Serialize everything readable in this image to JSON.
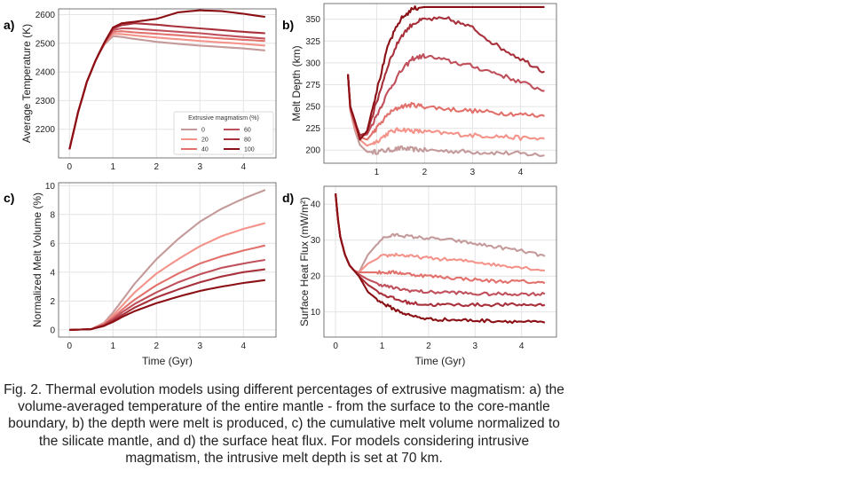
{
  "caption": "Fig. 2. Thermal evolution models using different percentages of extrusive magmatism: a) the volume-averaged temperature of the entire mantle - from the surface to the core-mantle boundary, b) the depth were melt is produced, c) the cumulative melt volume normalized to the silicate mantle, and d) the surface heat flux. For models considering intrusive magmatism, the intrusive melt depth is set at 70 km.",
  "colors": [
    "#c49a9a",
    "#f4938a",
    "#e2716c",
    "#c0505c",
    "#a8303a",
    "#8b1015"
  ],
  "chart_data": [
    {
      "id": "a",
      "panel_label": "a)",
      "type": "line",
      "xlabel": "",
      "ylabel": "Average Temperature (K)",
      "xlim": [
        -0.25,
        4.75
      ],
      "ylim": [
        2100,
        2620
      ],
      "xticks": [
        0,
        1,
        2,
        3,
        4
      ],
      "yticks": [
        2200,
        2300,
        2400,
        2500,
        2600
      ],
      "grid": true,
      "legend": {
        "title": "Extrusive magmatism (%)",
        "position": "lower-right",
        "entries": [
          "0",
          "20",
          "40",
          "60",
          "80",
          "100"
        ]
      },
      "x": [
        0,
        0.2,
        0.4,
        0.6,
        0.8,
        1.0,
        1.2,
        1.5,
        2.0,
        2.5,
        3.0,
        3.5,
        4.0,
        4.5
      ],
      "series": [
        {
          "name": "0",
          "values": [
            2130,
            2260,
            2365,
            2440,
            2495,
            2525,
            2522,
            2515,
            2505,
            2498,
            2492,
            2487,
            2482,
            2475
          ]
        },
        {
          "name": "20",
          "values": [
            2130,
            2260,
            2365,
            2440,
            2497,
            2533,
            2532,
            2527,
            2520,
            2514,
            2508,
            2503,
            2498,
            2492
          ]
        },
        {
          "name": "40",
          "values": [
            2130,
            2260,
            2365,
            2440,
            2498,
            2540,
            2542,
            2538,
            2533,
            2528,
            2522,
            2517,
            2512,
            2508
          ]
        },
        {
          "name": "60",
          "values": [
            2130,
            2260,
            2365,
            2440,
            2499,
            2546,
            2552,
            2551,
            2545,
            2540,
            2535,
            2528,
            2522,
            2516
          ]
        },
        {
          "name": "80",
          "values": [
            2130,
            2260,
            2365,
            2440,
            2500,
            2552,
            2563,
            2570,
            2565,
            2558,
            2552,
            2546,
            2540,
            2535
          ]
        },
        {
          "name": "100",
          "values": [
            2130,
            2260,
            2365,
            2440,
            2502,
            2555,
            2570,
            2575,
            2585,
            2608,
            2615,
            2612,
            2603,
            2592
          ]
        }
      ]
    },
    {
      "id": "b",
      "panel_label": "b)",
      "type": "line",
      "xlabel": "",
      "ylabel": "Melt Depth (km)",
      "xlim": [
        -0.1,
        4.75
      ],
      "ylim": [
        185,
        368
      ],
      "xticks": [
        1,
        2,
        3,
        4
      ],
      "yticks": [
        200,
        225,
        250,
        275,
        300,
        325,
        350
      ],
      "grid": true,
      "x": [
        0.4,
        0.45,
        0.55,
        0.65,
        0.8,
        1.0,
        1.25,
        1.5,
        1.75,
        2.0,
        2.5,
        3.0,
        3.5,
        4.0,
        4.5
      ],
      "series": [
        {
          "name": "0",
          "values": [
            287,
            245,
            222,
            206,
            198,
            198,
            200,
            202,
            201,
            200,
            199,
            198,
            197,
            196,
            194
          ]
        },
        {
          "name": "20",
          "values": [
            287,
            246,
            225,
            212,
            205,
            210,
            220,
            224,
            222,
            221,
            219,
            217,
            216,
            214,
            213
          ]
        },
        {
          "name": "40",
          "values": [
            287,
            247,
            228,
            215,
            212,
            225,
            242,
            250,
            252,
            250,
            247,
            245,
            243,
            241,
            239
          ]
        },
        {
          "name": "60",
          "values": [
            287,
            248,
            230,
            216,
            218,
            240,
            268,
            290,
            305,
            308,
            302,
            296,
            288,
            278,
            268
          ]
        },
        {
          "name": "80",
          "values": [
            287,
            249,
            232,
            217,
            220,
            255,
            300,
            330,
            345,
            350,
            350,
            340,
            320,
            305,
            290
          ]
        },
        {
          "name": "100",
          "values": [
            287,
            250,
            233,
            212,
            222,
            268,
            322,
            350,
            362,
            364,
            364,
            364,
            364,
            364,
            364
          ]
        }
      ]
    },
    {
      "id": "c",
      "panel_label": "c)",
      "type": "line",
      "xlabel": "Time (Gyr)",
      "ylabel": "Normalized Melt Volume (%)",
      "xlim": [
        -0.25,
        4.75
      ],
      "ylim": [
        -0.5,
        10.2
      ],
      "xticks": [
        0,
        1,
        2,
        3,
        4
      ],
      "yticks": [
        0,
        2,
        4,
        6,
        8,
        10
      ],
      "grid": true,
      "x": [
        0,
        0.5,
        0.8,
        1.0,
        1.25,
        1.5,
        2.0,
        2.5,
        3.0,
        3.5,
        4.0,
        4.5
      ],
      "series": [
        {
          "name": "0",
          "values": [
            0,
            0.05,
            0.5,
            1.2,
            2.2,
            3.2,
            4.9,
            6.3,
            7.5,
            8.4,
            9.1,
            9.7
          ]
        },
        {
          "name": "20",
          "values": [
            0,
            0.05,
            0.45,
            1.0,
            1.8,
            2.6,
            3.9,
            4.9,
            5.8,
            6.5,
            7.0,
            7.4
          ]
        },
        {
          "name": "40",
          "values": [
            0,
            0.05,
            0.4,
            0.85,
            1.5,
            2.1,
            3.1,
            3.9,
            4.6,
            5.1,
            5.5,
            5.85
          ]
        },
        {
          "name": "60",
          "values": [
            0,
            0.05,
            0.35,
            0.75,
            1.3,
            1.8,
            2.6,
            3.3,
            3.85,
            4.3,
            4.6,
            4.85
          ]
        },
        {
          "name": "80",
          "values": [
            0,
            0.05,
            0.3,
            0.65,
            1.1,
            1.55,
            2.25,
            2.8,
            3.3,
            3.7,
            4.0,
            4.2
          ]
        },
        {
          "name": "100",
          "values": [
            0,
            0.05,
            0.28,
            0.55,
            0.95,
            1.3,
            1.85,
            2.3,
            2.7,
            3.0,
            3.25,
            3.45
          ]
        }
      ]
    },
    {
      "id": "d",
      "panel_label": "d)",
      "type": "line",
      "xlabel": "Time (Gyr)",
      "ylabel": "Surface Heat Flux (mW/m²)",
      "xlim": [
        -0.25,
        4.75
      ],
      "ylim": [
        3,
        45
      ],
      "xticks": [
        0,
        1,
        2,
        3,
        4
      ],
      "yticks": [
        10,
        20,
        30,
        40
      ],
      "grid": true,
      "x": [
        0,
        0.05,
        0.1,
        0.2,
        0.3,
        0.4,
        0.5,
        0.7,
        1.0,
        1.3,
        1.6,
        2.0,
        2.5,
        3.0,
        3.5,
        4.0,
        4.5
      ],
      "series": [
        {
          "name": "0",
          "values": [
            43,
            36,
            31,
            26,
            23,
            21.5,
            21,
            26,
            30.5,
            31.5,
            31,
            30.5,
            30,
            29,
            28,
            27,
            25.5
          ]
        },
        {
          "name": "20",
          "values": [
            43,
            36,
            31,
            26,
            23,
            21.5,
            21,
            23.5,
            25.5,
            26,
            25.5,
            25,
            24.5,
            24,
            23,
            22.5,
            21.5
          ]
        },
        {
          "name": "40",
          "values": [
            43,
            36,
            31,
            26,
            23,
            21.5,
            21,
            21,
            21,
            21,
            20.5,
            20,
            19.5,
            19,
            18.5,
            18.5,
            18
          ]
        },
        {
          "name": "60",
          "values": [
            43,
            36,
            31,
            26,
            23,
            21.5,
            20.5,
            19,
            17.5,
            16.5,
            16,
            15.5,
            15.5,
            15,
            15,
            15,
            15
          ]
        },
        {
          "name": "80",
          "values": [
            43,
            36,
            31,
            26,
            23,
            21.5,
            20,
            17.5,
            15,
            13.5,
            12.5,
            12,
            12,
            12,
            12,
            12,
            12
          ]
        },
        {
          "name": "100",
          "values": [
            43,
            36,
            31,
            26,
            23,
            21.5,
            20,
            15.5,
            12.5,
            10.5,
            9,
            8,
            7.8,
            7.6,
            7.5,
            7.3,
            7
          ]
        }
      ]
    }
  ]
}
